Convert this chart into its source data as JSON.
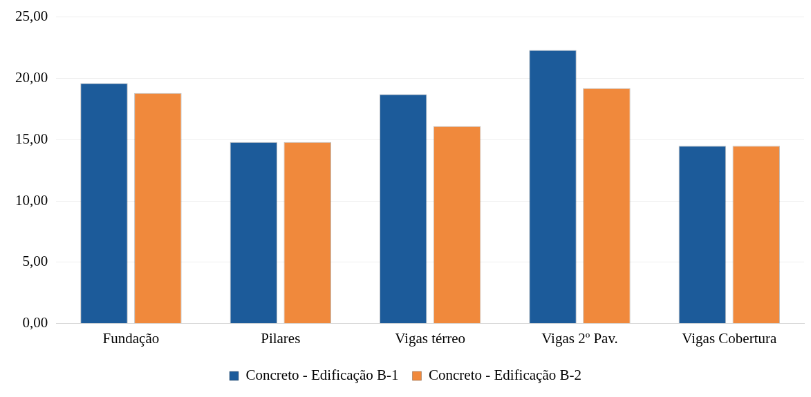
{
  "chart_data": {
    "type": "bar",
    "categories": [
      "Fundação",
      "Pilares",
      "Vigas térreo",
      "Vigas 2º Pav.",
      "Vigas Cobertura"
    ],
    "series": [
      {
        "name": "Concreto - Edificação B-1",
        "color": "#1c5b9a",
        "values": [
          19.6,
          14.8,
          18.7,
          22.3,
          14.5
        ]
      },
      {
        "name": "Concreto - Edificação B-2",
        "color": "#f0893c",
        "values": [
          18.8,
          14.8,
          16.1,
          19.2,
          14.5
        ]
      }
    ],
    "ylim": [
      0,
      25
    ],
    "yticks": [
      {
        "value": 0,
        "label": "0,00"
      },
      {
        "value": 5,
        "label": "5,00"
      },
      {
        "value": 10,
        "label": "10,00"
      },
      {
        "value": 15,
        "label": "15,00"
      },
      {
        "value": 20,
        "label": "20,00"
      },
      {
        "value": 25,
        "label": "25,00"
      }
    ],
    "grid": "y",
    "legend": "bottom"
  }
}
